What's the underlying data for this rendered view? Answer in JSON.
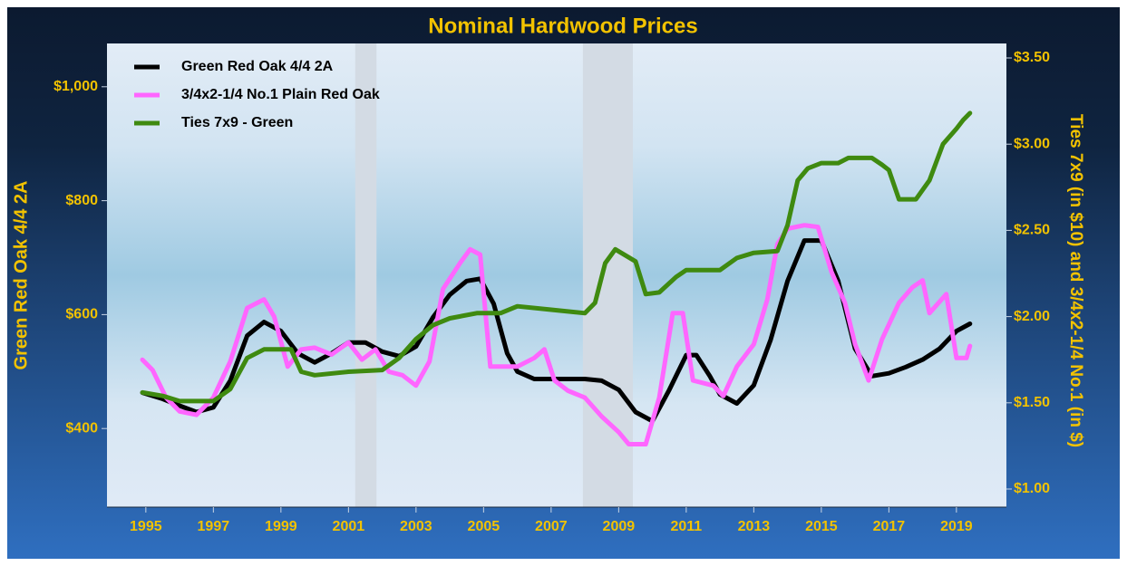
{
  "chart_data": {
    "type": "line",
    "title": "Nominal Hardwood Prices",
    "y_label": "Green Red Oak 4/4 2A",
    "y2_label": "Ties 7x9 (in $10)  and  3/4x2-1/4 No.1 (in $)",
    "xlim": [
      1993.85,
      2020.48
    ],
    "xticks": [
      1995,
      1997,
      1999,
      2001,
      2003,
      2005,
      2007,
      2009,
      2011,
      2013,
      2015,
      2017,
      2019
    ],
    "ylim": [
      262,
      1076
    ],
    "yticks": [
      {
        "value": 400,
        "label": "$400"
      },
      {
        "value": 600,
        "label": "$600"
      },
      {
        "value": 800,
        "label": "$800"
      },
      {
        "value": 1000,
        "label": "$1,000"
      }
    ],
    "y2lim": [
      0.895,
      3.584
    ],
    "y2ticks": [
      {
        "value": 1.0,
        "label": "$1.00"
      },
      {
        "value": 1.5,
        "label": "$1.50"
      },
      {
        "value": 2.0,
        "label": "$2.00"
      },
      {
        "value": 2.5,
        "label": "$2.50"
      },
      {
        "value": 3.0,
        "label": "$3.00"
      },
      {
        "value": 3.5,
        "label": "$3.50"
      }
    ],
    "shaded_regions": [
      [
        2001.2,
        2001.83
      ],
      [
        2007.94,
        2009.42
      ]
    ],
    "shade_color": "#d3dbe4",
    "legend": "top-left",
    "series": [
      {
        "name": "Green Red Oak 4/4 2A",
        "color": "#000000",
        "axis": "y",
        "x": [
          1994.9,
          1995.5,
          1996,
          1996.5,
          1997,
          1997.5,
          1998,
          1998.5,
          1999,
          1999.5,
          2000,
          2000.5,
          2001,
          2001.5,
          2002,
          2002.5,
          2003,
          2003.5,
          2004,
          2004.5,
          2004.9,
          2005.3,
          2005.7,
          2006,
          2006.5,
          2007,
          2008,
          2008.5,
          2009,
          2009.5,
          2010,
          2010.5,
          2011,
          2011.3,
          2011.7,
          2012,
          2012.5,
          2013,
          2013.5,
          2014,
          2014.5,
          2015,
          2015.5,
          2016,
          2016.5,
          2017,
          2017.5,
          2018,
          2018.5,
          2019,
          2019.4
        ],
        "values": [
          463,
          452,
          440,
          429,
          437,
          484,
          563,
          587,
          571,
          532,
          516,
          532,
          551,
          551,
          535,
          527,
          544,
          595,
          635,
          659,
          663,
          619,
          532,
          500,
          487,
          487,
          487,
          484,
          468,
          429,
          413,
          468,
          529,
          529,
          492,
          460,
          444,
          476,
          556,
          659,
          730,
          730,
          659,
          540,
          492,
          497,
          508,
          521,
          540,
          571,
          584
        ]
      },
      {
        "name": "3/4x2-1/4 No.1 Plain Red Oak",
        "color": "#ff66ff",
        "axis": "y2",
        "x": [
          1994.9,
          1995.2,
          1995.6,
          1996,
          1996.5,
          1997,
          1997.5,
          1998,
          1998.5,
          1998.8,
          1999.2,
          1999.6,
          2000,
          2000.5,
          2001,
          2001.4,
          2001.8,
          2002.2,
          2002.6,
          2003,
          2003.4,
          2003.8,
          2004.3,
          2004.6,
          2004.9,
          2005.2,
          2006,
          2006.5,
          2006.8,
          2007.1,
          2007.5,
          2008,
          2008.5,
          2009,
          2009.3,
          2009.8,
          2010.2,
          2010.6,
          2010.9,
          2011.2,
          2011.8,
          2012.1,
          2012.5,
          2013,
          2013.4,
          2013.7,
          2014,
          2014.5,
          2014.9,
          2015.3,
          2015.7,
          2016,
          2016.4,
          2016.8,
          2017.3,
          2017.7,
          2018,
          2018.2,
          2018.7,
          2019,
          2019.3,
          2019.4
        ],
        "values": [
          1.75,
          1.69,
          1.53,
          1.45,
          1.43,
          1.53,
          1.74,
          2.05,
          2.1,
          2.0,
          1.71,
          1.81,
          1.82,
          1.78,
          1.85,
          1.75,
          1.81,
          1.68,
          1.66,
          1.6,
          1.74,
          2.16,
          2.31,
          2.39,
          2.36,
          1.71,
          1.71,
          1.76,
          1.81,
          1.63,
          1.57,
          1.53,
          1.42,
          1.33,
          1.26,
          1.26,
          1.53,
          2.02,
          2.02,
          1.63,
          1.6,
          1.54,
          1.71,
          1.84,
          2.1,
          2.42,
          2.51,
          2.53,
          2.52,
          2.26,
          2.08,
          1.84,
          1.63,
          1.87,
          2.08,
          2.17,
          2.21,
          2.02,
          2.13,
          1.76,
          1.76,
          1.83
        ]
      },
      {
        "name": "Ties 7x9 - Green",
        "color": "#3f8a10",
        "axis": "y2",
        "x": [
          1994.9,
          1995.5,
          1996,
          1997,
          1997.5,
          1998,
          1998.5,
          1999,
          1999.3,
          1999.6,
          2000,
          2001,
          2002,
          2002.5,
          2003,
          2003.5,
          2004,
          2004.8,
          2005.5,
          2006,
          2007,
          2008,
          2008.3,
          2008.6,
          2008.9,
          2009.5,
          2009.8,
          2010.2,
          2010.7,
          2011,
          2012,
          2012.5,
          2013,
          2013.7,
          2014,
          2014.3,
          2014.6,
          2015,
          2015.5,
          2015.8,
          2016.5,
          2016.8,
          2017,
          2017.3,
          2017.8,
          2018.2,
          2018.6,
          2019,
          2019.2,
          2019.4
        ],
        "values": [
          1.56,
          1.54,
          1.51,
          1.51,
          1.58,
          1.76,
          1.81,
          1.81,
          1.81,
          1.68,
          1.66,
          1.68,
          1.69,
          1.76,
          1.87,
          1.95,
          1.99,
          2.02,
          2.02,
          2.06,
          2.04,
          2.02,
          2.08,
          2.31,
          2.39,
          2.32,
          2.13,
          2.14,
          2.23,
          2.27,
          2.27,
          2.34,
          2.37,
          2.38,
          2.53,
          2.79,
          2.86,
          2.89,
          2.89,
          2.92,
          2.92,
          2.88,
          2.85,
          2.68,
          2.68,
          2.79,
          3.0,
          3.09,
          3.14,
          3.18
        ]
      }
    ]
  }
}
